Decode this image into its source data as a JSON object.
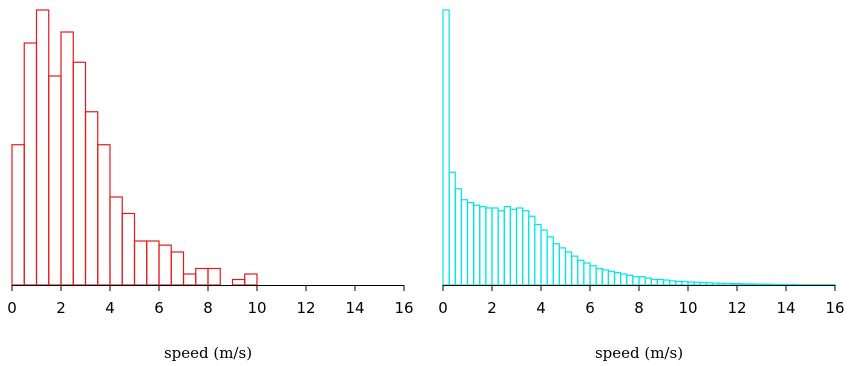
{
  "chart_data": [
    {
      "type": "bar",
      "xlabel": "speed (m/s)",
      "ylabel": "",
      "xlim": [
        0,
        16
      ],
      "ylim": [
        0,
        1
      ],
      "xticks": [
        "0",
        "2",
        "4",
        "6",
        "8",
        "10",
        "12",
        "14",
        "16"
      ],
      "bin_width": 0.5,
      "color": "#e31a1c",
      "bins_start": [
        0,
        0.5,
        1,
        1.5,
        2,
        2.5,
        3,
        3.5,
        4,
        4.5,
        5,
        5.5,
        6,
        6.5,
        7,
        7.5,
        8,
        8.5,
        9,
        9.5,
        10
      ],
      "values": [
        0.51,
        0.88,
        1.0,
        0.76,
        0.92,
        0.81,
        0.63,
        0.51,
        0.32,
        0.26,
        0.16,
        0.16,
        0.145,
        0.12,
        0.04,
        0.06,
        0.06,
        0.0,
        0.02,
        0.04,
        0.0
      ]
    },
    {
      "type": "bar",
      "xlabel": "speed (m/s)",
      "ylabel": "",
      "xlim": [
        0,
        16
      ],
      "ylim": [
        0,
        1
      ],
      "xticks": [
        "0",
        "2",
        "4",
        "6",
        "8",
        "10",
        "12",
        "14",
        "16"
      ],
      "bin_width": 0.25,
      "color": "#00e5e5",
      "values": [
        1.0,
        0.41,
        0.35,
        0.31,
        0.3,
        0.29,
        0.285,
        0.28,
        0.28,
        0.27,
        0.285,
        0.275,
        0.28,
        0.27,
        0.25,
        0.22,
        0.2,
        0.175,
        0.15,
        0.135,
        0.12,
        0.105,
        0.09,
        0.08,
        0.07,
        0.06,
        0.055,
        0.05,
        0.045,
        0.04,
        0.035,
        0.03,
        0.03,
        0.025,
        0.02,
        0.02,
        0.018,
        0.015,
        0.013,
        0.012,
        0.011,
        0.01,
        0.009,
        0.008,
        0.007,
        0.006,
        0.006,
        0.005,
        0.005,
        0.004,
        0.004,
        0.003,
        0.003,
        0.003,
        0.002,
        0.002,
        0.002,
        0.002,
        0.001,
        0.001,
        0.001,
        0.001,
        0.001,
        0.001
      ]
    }
  ]
}
